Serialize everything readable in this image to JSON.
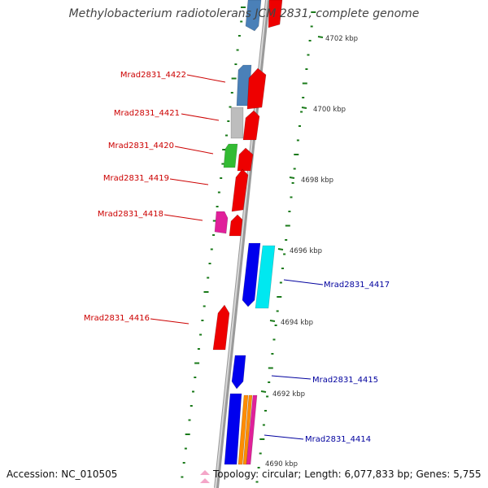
{
  "title": "Methylobacterium radiotolerans JCM 2831, complete genome",
  "footer": {
    "accession": "Accession: NC_010505",
    "topology": "Topology: circular; Length: 6,077,833 bp; Genes: 5,755"
  },
  "colors": {
    "backbone": "#8c8c8c",
    "gc_skew": "#1a7a1a",
    "forward_label": "#cc0000",
    "reverse_label": "#00009e",
    "steel": "#4a80b8",
    "red": "#ee0000",
    "gray": "#bdbdbd",
    "green": "#33bb33",
    "magenta": "#e0209a",
    "blue": "#0000ee",
    "cyan": "#00e8f0",
    "orange": "#ff8c00"
  },
  "scale_ticks": [
    "4702 kbp",
    "4700 kbp",
    "4698 kbp",
    "4696 kbp",
    "4694 kbp",
    "4692 kbp",
    "4690 kbp"
  ],
  "gene_labels": {
    "forward": [
      "Mrad2831_4422",
      "Mrad2831_4421",
      "Mrad2831_4420",
      "Mrad2831_4419",
      "Mrad2831_4418",
      "Mrad2831_4416"
    ],
    "reverse": [
      "Mrad2831_4417",
      "Mrad2831_4415",
      "Mrad2831_4414"
    ]
  }
}
